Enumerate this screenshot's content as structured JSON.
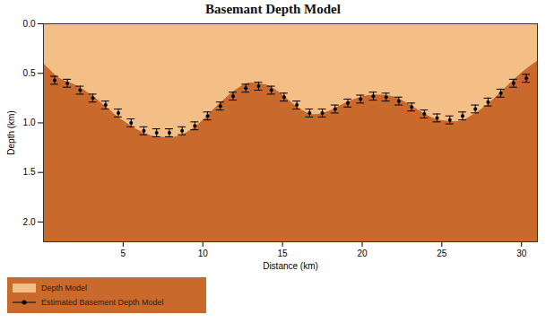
{
  "chart_data": {
    "type": "area",
    "title": "Basemant Depth Model",
    "x_label": "Distance (km)",
    "y_label": "Depth (km)",
    "xlim": [
      0,
      31
    ],
    "xticks": [
      5,
      10,
      15,
      20,
      25,
      30
    ],
    "ylim": [
      0,
      2.2
    ],
    "yticks": [
      0,
      0.5,
      1,
      1.5,
      2
    ],
    "legend": "bottom-left",
    "series": [
      {
        "name": "Depth Model",
        "type": "area",
        "color": "#f3bf86",
        "x": [
          0,
          1,
          2,
          3,
          4,
          5,
          6,
          7,
          8,
          9,
          10,
          11,
          12,
          13,
          14,
          15,
          16,
          17,
          18,
          19,
          20,
          21,
          22,
          23,
          24,
          25,
          26,
          27,
          28,
          29,
          30,
          31
        ],
        "values": [
          0.4,
          0.55,
          0.62,
          0.72,
          0.85,
          0.98,
          1.08,
          1.14,
          1.15,
          1.1,
          0.98,
          0.82,
          0.68,
          0.6,
          0.62,
          0.72,
          0.85,
          0.92,
          0.88,
          0.8,
          0.74,
          0.72,
          0.74,
          0.82,
          0.92,
          0.98,
          0.99,
          0.92,
          0.8,
          0.65,
          0.5,
          0.38
        ]
      },
      {
        "name": "Estimated Basement Depth Model",
        "type": "scatter",
        "color": "#000000",
        "marker": "circle",
        "x": [
          0.7,
          1.5,
          2.3,
          3.1,
          3.9,
          4.7,
          5.5,
          6.3,
          7.1,
          7.9,
          8.7,
          9.5,
          10.3,
          11.1,
          11.9,
          12.7,
          13.5,
          14.3,
          15.1,
          15.9,
          16.7,
          17.5,
          18.3,
          19.1,
          19.9,
          20.7,
          21.5,
          22.3,
          23.1,
          23.9,
          24.7,
          25.5,
          26.3,
          27.1,
          27.9,
          28.7,
          29.5,
          30.3
        ],
        "values": [
          0.57,
          0.6,
          0.67,
          0.75,
          0.82,
          0.9,
          1.0,
          1.08,
          1.1,
          1.1,
          1.08,
          1.03,
          0.93,
          0.83,
          0.73,
          0.65,
          0.63,
          0.67,
          0.74,
          0.82,
          0.9,
          0.9,
          0.86,
          0.8,
          0.76,
          0.73,
          0.74,
          0.78,
          0.84,
          0.91,
          0.95,
          0.97,
          0.93,
          0.86,
          0.79,
          0.7,
          0.6,
          0.55
        ],
        "errors": [
          0.04,
          0.04,
          0.04,
          0.04,
          0.04,
          0.04,
          0.04,
          0.04,
          0.04,
          0.04,
          0.04,
          0.04,
          0.04,
          0.04,
          0.04,
          0.04,
          0.04,
          0.04,
          0.04,
          0.04,
          0.04,
          0.04,
          0.04,
          0.04,
          0.04,
          0.04,
          0.04,
          0.04,
          0.04,
          0.04,
          0.04,
          0.04,
          0.04,
          0.04,
          0.04,
          0.04,
          0.04,
          0.04
        ]
      }
    ]
  }
}
